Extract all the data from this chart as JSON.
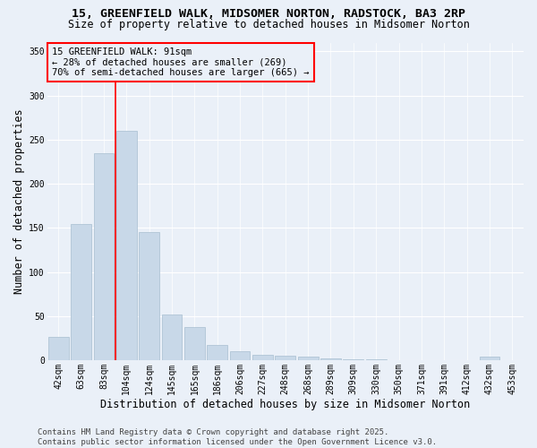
{
  "title_line1": "15, GREENFIELD WALK, MIDSOMER NORTON, RADSTOCK, BA3 2RP",
  "title_line2": "Size of property relative to detached houses in Midsomer Norton",
  "xlabel": "Distribution of detached houses by size in Midsomer Norton",
  "ylabel": "Number of detached properties",
  "bins": [
    "42sqm",
    "63sqm",
    "83sqm",
    "104sqm",
    "124sqm",
    "145sqm",
    "165sqm",
    "186sqm",
    "206sqm",
    "227sqm",
    "248sqm",
    "268sqm",
    "289sqm",
    "309sqm",
    "330sqm",
    "350sqm",
    "371sqm",
    "391sqm",
    "412sqm",
    "432sqm",
    "453sqm"
  ],
  "values": [
    27,
    155,
    235,
    260,
    145,
    52,
    38,
    18,
    10,
    6,
    5,
    4,
    2,
    1,
    1,
    0,
    0,
    0,
    0,
    4,
    0
  ],
  "bar_color": "#c8d8e8",
  "bar_edge_color": "#a8bfd0",
  "vline_x_index": 2.5,
  "vline_color": "red",
  "annotation_text": "15 GREENFIELD WALK: 91sqm\n← 28% of detached houses are smaller (269)\n70% of semi-detached houses are larger (665) →",
  "ylim": [
    0,
    360
  ],
  "yticks": [
    0,
    50,
    100,
    150,
    200,
    250,
    300,
    350
  ],
  "background_color": "#eaf0f8",
  "footer_text": "Contains HM Land Registry data © Crown copyright and database right 2025.\nContains public sector information licensed under the Open Government Licence v3.0.",
  "title_fontsize": 9.5,
  "subtitle_fontsize": 8.5,
  "axis_label_fontsize": 8.5,
  "tick_fontsize": 7,
  "annotation_fontsize": 7.5,
  "footer_fontsize": 6.5
}
